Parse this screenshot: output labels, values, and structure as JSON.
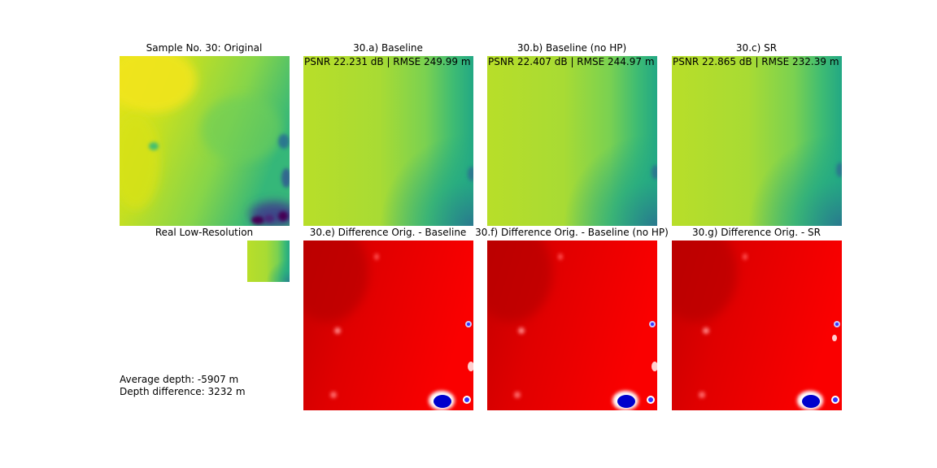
{
  "figure": {
    "row1_titles": [
      "Sample No. 30: Original",
      "30.a) Baseline",
      "30.b) Baseline (no HP)",
      "30.c) SR"
    ],
    "row2_titles": [
      "Real Low-Resolution",
      "30.e) Difference Orig. - Baseline",
      "30.f) Difference Orig. - Baseline (no HP)",
      "30.g) Difference Orig. - SR"
    ],
    "metrics": [
      "PSNR 22.231 dB | RMSE 249.99 m",
      "PSNR 22.407 dB | RMSE 244.97 m",
      "PSNR 22.865 dB | RMSE 232.39 m"
    ],
    "average_depth": "Average depth: -5907 m",
    "depth_difference": "Depth difference: 3232 m"
  },
  "chart_data": {
    "type": "heatmap",
    "colormaps": {
      "depth": "viridis",
      "difference": "seismic"
    },
    "panels": [
      {
        "title": "Sample No. 30: Original",
        "kind": "depth"
      },
      {
        "title": "30.a) Baseline",
        "kind": "depth",
        "psnr_db": 22.231,
        "rmse_m": 249.99
      },
      {
        "title": "30.b) Baseline (no HP)",
        "kind": "depth",
        "psnr_db": 22.407,
        "rmse_m": 244.97
      },
      {
        "title": "30.c) SR",
        "kind": "depth",
        "psnr_db": 22.865,
        "rmse_m": 232.39
      },
      {
        "title": "Real Low-Resolution",
        "kind": "depth"
      },
      {
        "title": "30.e) Difference Orig. - Baseline",
        "kind": "difference"
      },
      {
        "title": "30.f) Difference Orig. - Baseline (no HP)",
        "kind": "difference"
      },
      {
        "title": "30.g) Difference Orig. - SR",
        "kind": "difference"
      }
    ],
    "average_depth_m": -5907,
    "depth_difference_m": 3232
  }
}
